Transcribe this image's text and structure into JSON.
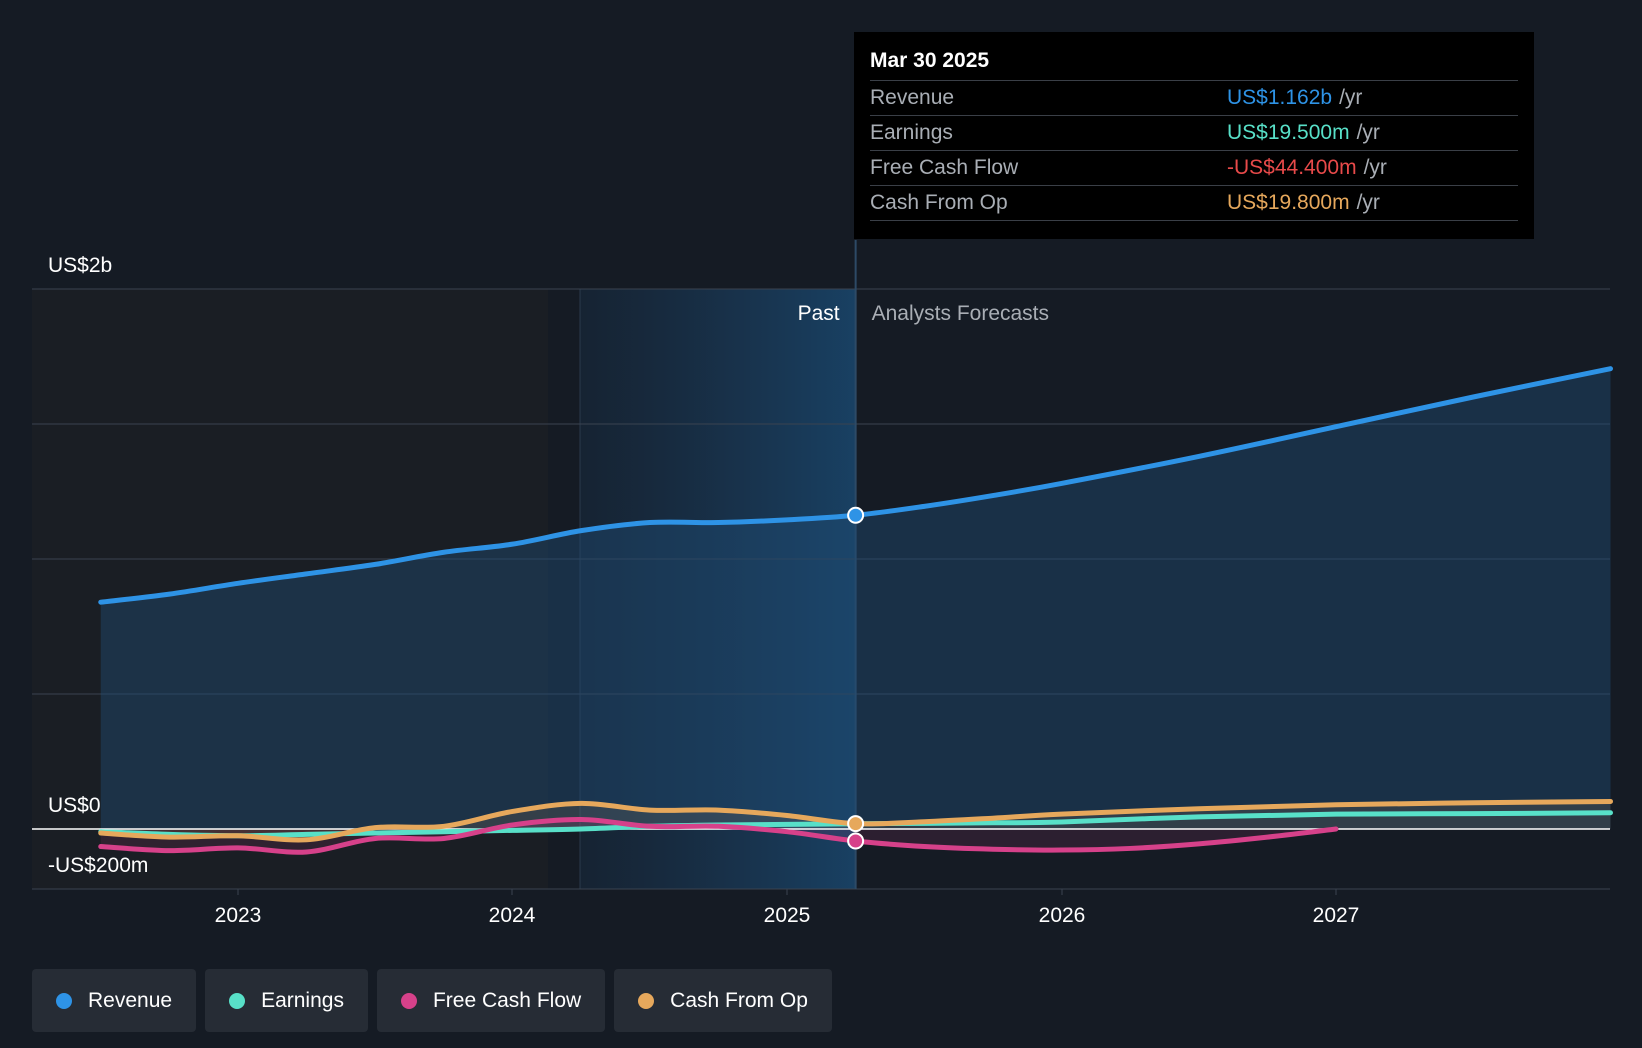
{
  "chart_data": {
    "type": "area",
    "xlabel": "",
    "ylabel": "",
    "x_ticks": [
      "2023",
      "2024",
      "2025",
      "2026",
      "2027"
    ],
    "y_ticks": [
      "US$2b",
      "US$0",
      "-US$200m"
    ],
    "ylim": [
      -200,
      2000
    ],
    "grid": true,
    "regions": {
      "past_label": "Past",
      "forecast_label": "Analysts Forecasts",
      "divider_date": "2025-03-30"
    },
    "series": [
      {
        "name": "Revenue",
        "color": "#2e93e6",
        "fill": true,
        "points": [
          [
            2022.5,
            840
          ],
          [
            2022.75,
            870
          ],
          [
            2023.0,
            910
          ],
          [
            2023.25,
            945
          ],
          [
            2023.5,
            980
          ],
          [
            2023.75,
            1025
          ],
          [
            2024.0,
            1055
          ],
          [
            2024.25,
            1105
          ],
          [
            2024.5,
            1135
          ],
          [
            2024.75,
            1135
          ],
          [
            2025.0,
            1145
          ],
          [
            2025.25,
            1162
          ],
          [
            2025.5,
            1195
          ],
          [
            2025.75,
            1235
          ],
          [
            2026.0,
            1280
          ],
          [
            2026.5,
            1380
          ],
          [
            2027.0,
            1490
          ],
          [
            2027.5,
            1600
          ],
          [
            2028.0,
            1705
          ]
        ]
      },
      {
        "name": "Earnings",
        "color": "#58e0c8",
        "fill": false,
        "points": [
          [
            2022.5,
            -10
          ],
          [
            2022.75,
            -20
          ],
          [
            2023.0,
            -25
          ],
          [
            2023.25,
            -20
          ],
          [
            2023.5,
            -15
          ],
          [
            2023.75,
            -10
          ],
          [
            2024.0,
            -5
          ],
          [
            2024.25,
            0
          ],
          [
            2024.5,
            10
          ],
          [
            2024.75,
            15
          ],
          [
            2025.0,
            17
          ],
          [
            2025.25,
            19.5
          ],
          [
            2025.5,
            21
          ],
          [
            2025.75,
            23
          ],
          [
            2026.0,
            26
          ],
          [
            2026.5,
            45
          ],
          [
            2027.0,
            55
          ],
          [
            2027.5,
            57
          ],
          [
            2028.0,
            60
          ]
        ]
      },
      {
        "name": "Free Cash Flow",
        "color": "#d6418a",
        "fill": false,
        "points": [
          [
            2022.5,
            -65
          ],
          [
            2022.75,
            -80
          ],
          [
            2023.0,
            -70
          ],
          [
            2023.25,
            -85
          ],
          [
            2023.5,
            -35
          ],
          [
            2023.75,
            -35
          ],
          [
            2024.0,
            15
          ],
          [
            2024.25,
            35
          ],
          [
            2024.5,
            10
          ],
          [
            2024.75,
            10
          ],
          [
            2025.0,
            -10
          ],
          [
            2025.25,
            -44.4
          ],
          [
            2025.5,
            -65
          ],
          [
            2025.75,
            -75
          ],
          [
            2026.0,
            -78
          ],
          [
            2026.25,
            -72
          ],
          [
            2026.5,
            -55
          ],
          [
            2026.75,
            -30
          ],
          [
            2027.0,
            0
          ]
        ]
      },
      {
        "name": "Cash From Op",
        "color": "#e6a85c",
        "fill": false,
        "points": [
          [
            2022.5,
            -15
          ],
          [
            2022.75,
            -30
          ],
          [
            2023.0,
            -25
          ],
          [
            2023.25,
            -40
          ],
          [
            2023.5,
            5
          ],
          [
            2023.75,
            10
          ],
          [
            2024.0,
            65
          ],
          [
            2024.25,
            95
          ],
          [
            2024.5,
            70
          ],
          [
            2024.75,
            70
          ],
          [
            2025.0,
            50
          ],
          [
            2025.25,
            19.8
          ],
          [
            2025.5,
            27
          ],
          [
            2025.75,
            40
          ],
          [
            2026.0,
            55
          ],
          [
            2026.5,
            75
          ],
          [
            2027.0,
            90
          ],
          [
            2027.5,
            97
          ],
          [
            2028.0,
            102
          ]
        ]
      }
    ],
    "highlight_date": 2025.25
  },
  "tooltip": {
    "date": "Mar 30 2025",
    "rows": [
      {
        "name": "Revenue",
        "value": "US$1.162b",
        "unit": "/yr",
        "color": "#2e93e6"
      },
      {
        "name": "Earnings",
        "value": "US$19.500m",
        "unit": "/yr",
        "color": "#58e0c8"
      },
      {
        "name": "Free Cash Flow",
        "value": "-US$44.400m",
        "unit": "/yr",
        "color": "#e84a4a"
      },
      {
        "name": "Cash From Op",
        "value": "US$19.800m",
        "unit": "/yr",
        "color": "#e6a85c"
      }
    ]
  },
  "legend": [
    {
      "label": "Revenue",
      "color": "#2e93e6"
    },
    {
      "label": "Earnings",
      "color": "#58e0c8"
    },
    {
      "label": "Free Cash Flow",
      "color": "#d6418a"
    },
    {
      "label": "Cash From Op",
      "color": "#e6a85c"
    }
  ]
}
